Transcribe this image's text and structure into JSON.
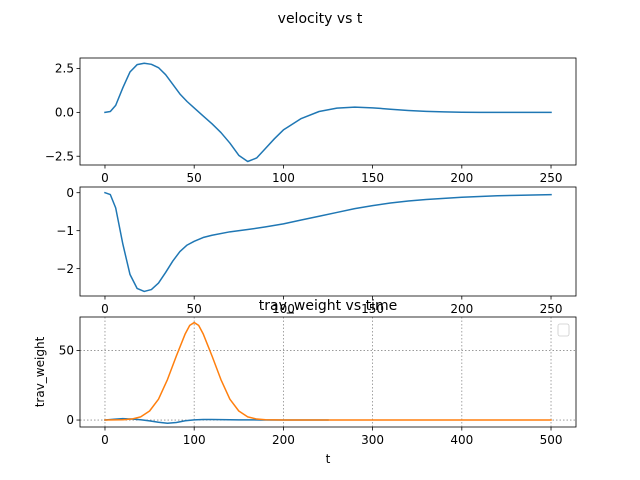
{
  "figure": {
    "suptitle": "velocity vs t"
  },
  "chart_data": [
    {
      "type": "line",
      "title": "",
      "xlabel": "",
      "ylabel": "",
      "xlim": [
        -14,
        264
      ],
      "ylim": [
        -3.0,
        3.1
      ],
      "xticks": [
        0,
        50,
        100,
        150,
        200,
        250
      ],
      "xtick_labels": [
        "0",
        "50",
        "100",
        "150",
        "200",
        "250"
      ],
      "yticks": [
        2.5,
        0.0,
        -2.5
      ],
      "ytick_labels": [
        "2.5",
        "0.0",
        "−2.5"
      ],
      "grid": false,
      "series": [
        {
          "color": "#1f77b4",
          "x": [
            0,
            3,
            6,
            10,
            14,
            18,
            22,
            26,
            30,
            34,
            38,
            42,
            46,
            50,
            55,
            60,
            65,
            70,
            75,
            80,
            85,
            90,
            95,
            100,
            110,
            120,
            130,
            140,
            150,
            160,
            170,
            180,
            190,
            200,
            210,
            220,
            230,
            240,
            250
          ],
          "y": [
            0.0,
            0.05,
            0.4,
            1.4,
            2.3,
            2.72,
            2.8,
            2.74,
            2.55,
            2.15,
            1.6,
            1.05,
            0.62,
            0.25,
            -0.2,
            -0.65,
            -1.15,
            -1.75,
            -2.45,
            -2.8,
            -2.6,
            -2.05,
            -1.5,
            -1.0,
            -0.35,
            0.05,
            0.24,
            0.3,
            0.26,
            0.18,
            0.11,
            0.06,
            0.03,
            0.01,
            0.0,
            0.0,
            0.0,
            0.0,
            0.0
          ]
        }
      ]
    },
    {
      "type": "line",
      "title": "",
      "xlabel": "",
      "ylabel": "",
      "xlim": [
        -14,
        264
      ],
      "ylim": [
        -2.72,
        0.15
      ],
      "xticks": [
        0,
        50,
        100,
        150,
        200,
        250
      ],
      "xtick_labels": [
        "0",
        "50",
        "100",
        "150",
        "200",
        "250"
      ],
      "yticks": [
        0,
        -1,
        -2
      ],
      "ytick_labels": [
        "0",
        "−1",
        "−2"
      ],
      "grid": false,
      "series": [
        {
          "color": "#1f77b4",
          "x": [
            0,
            3,
            6,
            10,
            14,
            18,
            22,
            26,
            30,
            34,
            38,
            42,
            46,
            50,
            55,
            60,
            70,
            80,
            90,
            100,
            110,
            120,
            130,
            140,
            150,
            160,
            170,
            180,
            190,
            200,
            210,
            220,
            230,
            240,
            250
          ],
          "y": [
            0.0,
            -0.05,
            -0.4,
            -1.35,
            -2.15,
            -2.52,
            -2.6,
            -2.55,
            -2.38,
            -2.1,
            -1.8,
            -1.55,
            -1.38,
            -1.28,
            -1.18,
            -1.12,
            -1.03,
            -0.97,
            -0.9,
            -0.82,
            -0.72,
            -0.62,
            -0.52,
            -0.42,
            -0.34,
            -0.27,
            -0.22,
            -0.18,
            -0.15,
            -0.12,
            -0.1,
            -0.08,
            -0.07,
            -0.06,
            -0.05
          ]
        }
      ]
    },
    {
      "type": "line",
      "title": "trav_weight vs time",
      "xlabel": "t",
      "ylabel": "trav_weight",
      "xlim": [
        -28,
        528
      ],
      "ylim": [
        -5,
        74
      ],
      "xticks": [
        0,
        100,
        200,
        300,
        400,
        500
      ],
      "xtick_labels": [
        "0",
        "100",
        "200",
        "300",
        "400",
        "500"
      ],
      "yticks": [
        0,
        50
      ],
      "ytick_labels": [
        "0",
        "50"
      ],
      "grid": true,
      "legend": "top-right",
      "series": [
        {
          "color": "#1f77b4",
          "x": [
            0,
            10,
            20,
            30,
            40,
            50,
            60,
            70,
            80,
            90,
            100,
            110,
            120,
            130,
            150,
            175,
            200,
            225,
            250
          ],
          "y": [
            0.0,
            0.6,
            1.0,
            0.7,
            0.2,
            -0.6,
            -1.6,
            -2.3,
            -1.8,
            -0.5,
            0.1,
            0.4,
            0.4,
            0.3,
            0.15,
            0.05,
            0.0,
            0.0,
            0.0
          ]
        },
        {
          "color": "#ff7f0e",
          "x": [
            0,
            20,
            30,
            40,
            50,
            60,
            70,
            80,
            90,
            95,
            100,
            105,
            110,
            120,
            130,
            140,
            150,
            160,
            170,
            180,
            200,
            250,
            300,
            400,
            500
          ],
          "y": [
            0.0,
            0.2,
            0.7,
            2.3,
            6.5,
            15.0,
            29.0,
            46.0,
            62.0,
            68.0,
            70.0,
            68.0,
            62.0,
            46.0,
            29.0,
            15.0,
            6.5,
            2.3,
            0.7,
            0.2,
            0.0,
            0.0,
            0.0,
            0.0,
            0.0
          ]
        }
      ]
    }
  ]
}
